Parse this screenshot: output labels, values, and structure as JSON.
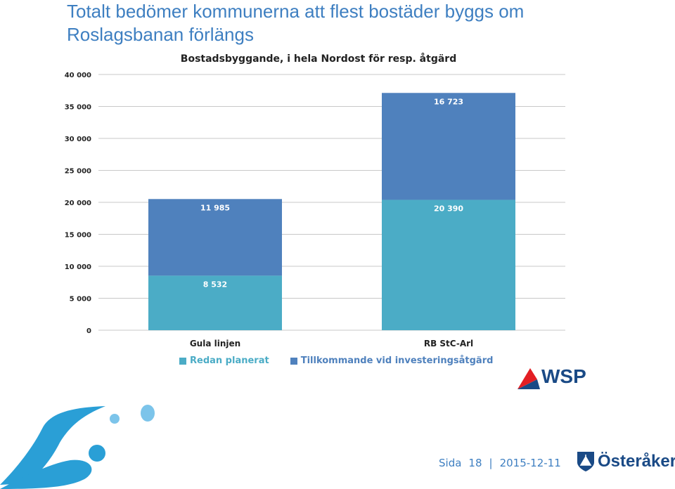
{
  "slide": {
    "title": "Totalt bedömer kommunerna att flest bostäder byggs om Roslagsbanan förlängs"
  },
  "chart_data": {
    "type": "bar",
    "stacked": true,
    "title": "Bostadsbyggande, i hela Nordost för resp. åtgärd",
    "categories": [
      "Gula linjen",
      "RB StC-Arl"
    ],
    "series": [
      {
        "name": "Redan planerat",
        "values": [
          8532,
          20390
        ],
        "labels": [
          "8 532",
          "20 390"
        ],
        "color": "#4bacc6"
      },
      {
        "name": "Tillkommande vid investeringsåtgärd",
        "values": [
          11985,
          16723
        ],
        "labels": [
          "11 985",
          "16 723"
        ],
        "color": "#4f81bd"
      }
    ],
    "ylim": [
      0,
      40000
    ],
    "yticks": [
      0,
      5000,
      10000,
      15000,
      20000,
      25000,
      30000,
      35000,
      40000
    ],
    "ytick_labels": [
      "0",
      "5 000",
      "10 000",
      "15 000",
      "20 000",
      "25 000",
      "30 000",
      "35 000",
      "40 000"
    ],
    "grid": true,
    "legend": "bottom"
  },
  "logos": {
    "wsp": "WSP",
    "municipality": "Österåker"
  },
  "footer": {
    "page_label": "Sida",
    "page_number": "18",
    "separator": "|",
    "date": "2015-12-11"
  },
  "colors": {
    "title": "#3e7fc1",
    "wsp_red": "#e31e24",
    "wsp_blue": "#1a4a86",
    "splash": "#2a9fd6"
  }
}
